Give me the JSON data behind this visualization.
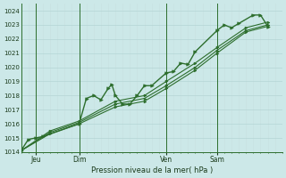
{
  "xlabel": "Pression niveau de la mer( hPa )",
  "background_color": "#cce8e8",
  "grid_color_major": "#aad4d4",
  "grid_color_minor": "#bbdede",
  "line_color": "#2d6e2d",
  "ylim": [
    1014,
    1024.5
  ],
  "yticks": [
    1014,
    1015,
    1016,
    1017,
    1018,
    1019,
    1020,
    1021,
    1022,
    1023,
    1024
  ],
  "xlim": [
    0,
    36
  ],
  "day_labels": [
    "Jeu",
    "Dim",
    "Ven",
    "Sam"
  ],
  "day_positions": [
    2,
    8,
    20,
    27
  ],
  "vline_positions": [
    2,
    8,
    20,
    27
  ],
  "series_main": [
    [
      0,
      1014.1
    ],
    [
      1,
      1014.9
    ],
    [
      2,
      1015.0
    ],
    [
      3,
      1015.1
    ],
    [
      8,
      1016.0
    ],
    [
      9,
      1017.8
    ],
    [
      10,
      1018.0
    ],
    [
      11,
      1017.7
    ],
    [
      12,
      1018.5
    ],
    [
      12.5,
      1018.8
    ],
    [
      13,
      1018.0
    ],
    [
      14,
      1017.4
    ],
    [
      15,
      1017.4
    ],
    [
      16,
      1018.0
    ],
    [
      17,
      1018.7
    ],
    [
      18,
      1018.7
    ],
    [
      20,
      1019.6
    ],
    [
      21,
      1019.7
    ],
    [
      22,
      1020.3
    ],
    [
      23,
      1020.2
    ],
    [
      24,
      1021.1
    ],
    [
      27,
      1022.6
    ],
    [
      28,
      1023.0
    ],
    [
      29,
      1022.8
    ],
    [
      30,
      1023.1
    ],
    [
      32,
      1023.7
    ],
    [
      33,
      1023.7
    ],
    [
      34,
      1022.9
    ]
  ],
  "series_trend1": [
    [
      0,
      1014.1
    ],
    [
      4,
      1015.3
    ],
    [
      8,
      1016.0
    ],
    [
      13,
      1017.2
    ],
    [
      17,
      1017.6
    ],
    [
      20,
      1018.5
    ],
    [
      24,
      1019.8
    ],
    [
      27,
      1021.0
    ],
    [
      31,
      1022.5
    ],
    [
      34,
      1022.9
    ]
  ],
  "series_trend2": [
    [
      0,
      1014.1
    ],
    [
      4,
      1015.4
    ],
    [
      8,
      1016.1
    ],
    [
      13,
      1017.4
    ],
    [
      17,
      1017.8
    ],
    [
      20,
      1018.7
    ],
    [
      24,
      1020.0
    ],
    [
      27,
      1021.2
    ],
    [
      31,
      1022.6
    ],
    [
      34,
      1023.0
    ]
  ],
  "series_trend3": [
    [
      0,
      1014.1
    ],
    [
      4,
      1015.5
    ],
    [
      8,
      1016.2
    ],
    [
      13,
      1017.6
    ],
    [
      17,
      1018.0
    ],
    [
      20,
      1019.0
    ],
    [
      24,
      1020.3
    ],
    [
      27,
      1021.4
    ],
    [
      31,
      1022.8
    ],
    [
      34,
      1023.2
    ]
  ]
}
